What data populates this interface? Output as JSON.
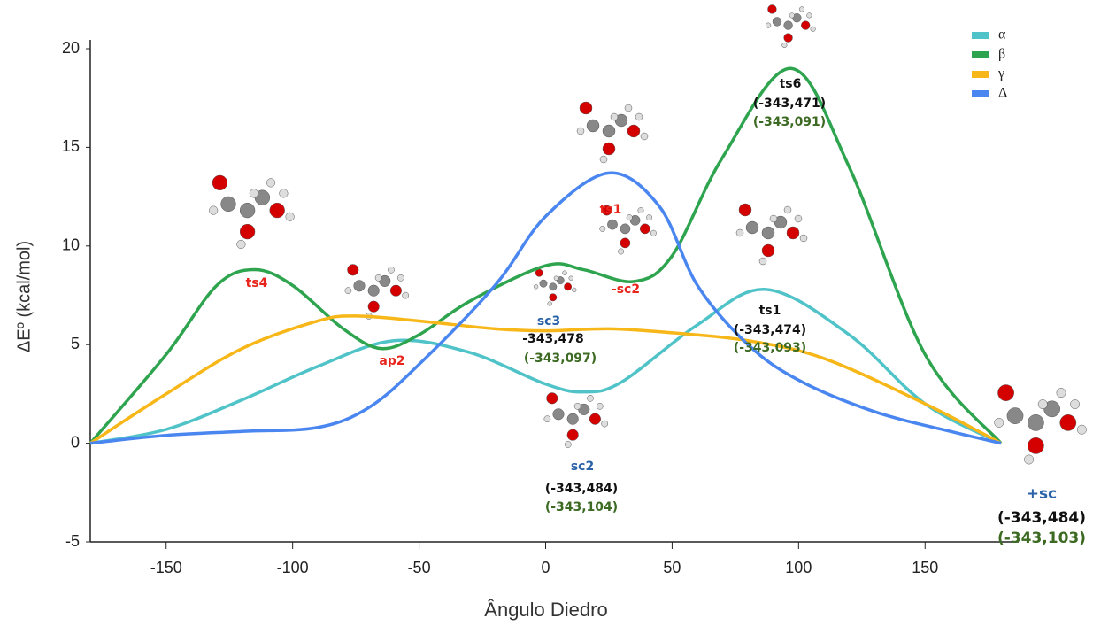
{
  "chart_data": {
    "type": "line",
    "x_label": "Ângulo Diedro",
    "y_label": "ΔEº (kcal/mol)",
    "xlim": [
      -180,
      180
    ],
    "xticks": [
      -150,
      -100,
      -50,
      0,
      50,
      100,
      150
    ],
    "ylim": [
      -5,
      20
    ],
    "yticks": [
      -5,
      0,
      5,
      10,
      15,
      20
    ],
    "grid": false,
    "legend": "top-right",
    "series": [
      {
        "name": "α",
        "color": "#4fc3c8",
        "x": [
          -180,
          -150,
          -120,
          -90,
          -60,
          -30,
          0,
          15,
          30,
          60,
          87,
          120,
          150,
          180
        ],
        "values": [
          0,
          0.7,
          2.2,
          3.9,
          5.2,
          4.6,
          3.0,
          2.6,
          3.1,
          6.0,
          7.8,
          5.5,
          2.0,
          0
        ]
      },
      {
        "name": "β",
        "color": "#2ea44f",
        "x": [
          -180,
          -150,
          -130,
          -115,
          -100,
          -80,
          -65,
          -50,
          -30,
          0,
          15,
          35,
          50,
          70,
          97,
          120,
          150,
          180
        ],
        "values": [
          0,
          4.5,
          8.0,
          8.8,
          8.0,
          5.8,
          4.8,
          5.5,
          7.2,
          9.0,
          8.8,
          8.2,
          9.5,
          14.5,
          19.0,
          14.0,
          4.5,
          0
        ]
      },
      {
        "name": "γ",
        "color": "#f7b718",
        "x": [
          -180,
          -150,
          -120,
          -90,
          -75,
          -50,
          -20,
          0,
          25,
          50,
          80,
          110,
          150,
          180
        ],
        "values": [
          0,
          2.5,
          4.8,
          6.2,
          6.45,
          6.2,
          5.8,
          5.7,
          5.8,
          5.6,
          5.2,
          4.3,
          2.0,
          0
        ]
      },
      {
        "name": "Δ",
        "color": "#4a86f0",
        "x": [
          -180,
          -150,
          -120,
          -90,
          -70,
          -50,
          -20,
          0,
          25,
          45,
          60,
          80,
          100,
          130,
          160,
          180
        ],
        "values": [
          0,
          0.4,
          0.6,
          0.8,
          1.8,
          4.0,
          8.0,
          11.5,
          13.7,
          12.0,
          8.0,
          5.0,
          3.2,
          1.6,
          0.6,
          0
        ]
      }
    ],
    "annotations": [
      {
        "text": "ts4",
        "color": "#e8251c"
      },
      {
        "text": "ap2",
        "color": "#e8251c"
      },
      {
        "text": "ts1",
        "color": "#e8251c"
      },
      {
        "text": "-sc2",
        "color": "#e8251c"
      },
      {
        "text": "sc3",
        "color": "#2a62a8"
      },
      {
        "text": "-343,478",
        "color": "#111111"
      },
      {
        "text": "(-343,097)",
        "color": "#3c6a22"
      },
      {
        "text": "sc2",
        "color": "#2a62a8"
      },
      {
        "text": "(-343,484)",
        "color": "#111111"
      },
      {
        "text": "(-343,104)",
        "color": "#3c6a22"
      },
      {
        "text": "ts6",
        "color": "#111111"
      },
      {
        "text": "(-343,471)",
        "color": "#111111"
      },
      {
        "text": "(-343,091)",
        "color": "#3c6a22"
      },
      {
        "text": "ts1",
        "color": "#111111"
      },
      {
        "text": "(-343,474)",
        "color": "#111111"
      },
      {
        "text": "(-343,093)",
        "color": "#3c6a22"
      },
      {
        "text": "+sc",
        "color": "#2a62a8"
      },
      {
        "text": "(-343,484)",
        "color": "#111111"
      },
      {
        "text": "(-343,103)",
        "color": "#3c6a22"
      }
    ]
  }
}
